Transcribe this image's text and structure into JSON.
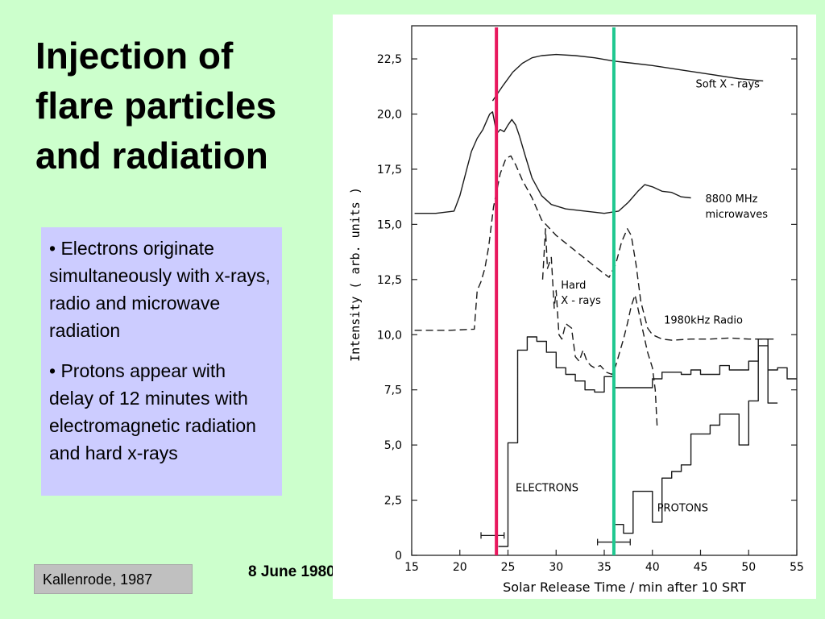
{
  "slide": {
    "title_lines": [
      "Injection of",
      "flare particles",
      "and radiation"
    ],
    "bullets": [
      "• Electrons originate simultaneously with x-rays, radio and microwave radiation",
      "• Protons appear with delay of 12 minutes with electromagnetic radiation and hard x-rays"
    ],
    "citation": "Kallenrode, 1987",
    "date": "8 June 1980"
  },
  "chart_data": {
    "type": "line",
    "title": "",
    "xlabel": "Solar Release Time   / min after 10 SRT",
    "ylabel": "Intensity  ( arb. units )",
    "xlim": [
      15,
      55
    ],
    "ylim": [
      0,
      24
    ],
    "x_ticks": [
      15,
      20,
      25,
      30,
      35,
      40,
      45,
      50,
      55
    ],
    "x_tick_labels": [
      "15",
      "20",
      "25",
      "30",
      "35",
      "40",
      "45",
      "50",
      "55"
    ],
    "y_ticks": [
      0,
      2.5,
      5,
      7.5,
      10,
      12.5,
      15,
      17.5,
      20,
      22.5
    ],
    "y_tick_labels": [
      "0",
      "2,5",
      "5,0",
      "7,5",
      "10,0",
      "12,5",
      "15,0",
      "17,5",
      "20,0",
      "22,5"
    ],
    "grid": false,
    "series": [
      {
        "name": "Soft X-rays",
        "style": "solid",
        "x": [
          23.4,
          24.5,
          25.5,
          26.5,
          27.5,
          28.5,
          30,
          32,
          34,
          36,
          38,
          40,
          43,
          46,
          49,
          51.5
        ],
        "y": [
          20.6,
          21.3,
          21.9,
          22.3,
          22.55,
          22.65,
          22.7,
          22.65,
          22.55,
          22.4,
          22.3,
          22.2,
          22.0,
          21.8,
          21.6,
          21.5
        ]
      },
      {
        "name": "8800 MHz microwaves",
        "style": "solid",
        "x": [
          15.3,
          17.5,
          19.4,
          20,
          20.6,
          21.2,
          21.8,
          22.4,
          22.8,
          23.1,
          23.4,
          23.7,
          23.9,
          24.2,
          24.6,
          25,
          25.4,
          25.8,
          26.2,
          26.8,
          27.5,
          28.5,
          29.5,
          31,
          33,
          35,
          36.5,
          37.5,
          38.5,
          39.2,
          40,
          41,
          42,
          43,
          44
        ],
        "y": [
          15.5,
          15.5,
          15.6,
          16.3,
          17.3,
          18.3,
          18.9,
          19.3,
          19.7,
          20.0,
          20.1,
          19.4,
          19.15,
          19.3,
          19.2,
          19.5,
          19.75,
          19.5,
          19.0,
          18.1,
          17.1,
          16.3,
          15.9,
          15.7,
          15.6,
          15.5,
          15.6,
          16.0,
          16.5,
          16.8,
          16.7,
          16.5,
          16.45,
          16.25,
          16.2
        ]
      },
      {
        "name": "1980kHz Radio",
        "style": "dashed",
        "x": [
          15.3,
          19,
          21.5,
          21.8,
          22.2,
          22.6,
          23,
          23.5,
          24.2,
          24.8,
          25.3,
          25.8,
          26.5,
          27.5,
          28.5,
          30,
          32,
          34,
          35.5,
          36.2,
          36.8,
          37.4,
          37.8,
          38.3,
          38.8,
          39.5,
          40,
          41,
          42,
          44,
          46,
          48,
          50,
          51,
          53
        ],
        "y": [
          10.2,
          10.2,
          10.25,
          12.0,
          12.4,
          13.0,
          14.0,
          15.8,
          17.3,
          18.0,
          18.1,
          17.7,
          17.0,
          16.2,
          15.2,
          14.5,
          13.8,
          13.1,
          12.6,
          13.2,
          14.2,
          14.8,
          14.5,
          13.2,
          11.5,
          10.3,
          10.0,
          9.8,
          9.75,
          9.8,
          9.8,
          9.85,
          9.8,
          9.8,
          9.8
        ]
      },
      {
        "name": "Hard X-rays",
        "style": "dashed",
        "x": [
          28.6,
          28.9,
          29.1,
          29.5,
          29.8,
          30.0,
          30.3,
          30.6,
          31.0,
          31.6,
          32.0,
          32.4,
          32.8,
          33.2,
          33.6,
          34.0,
          34.6,
          35.2,
          35.8,
          36.2,
          36.6,
          37.0,
          37.4,
          37.8,
          38.2,
          38.6,
          39.0,
          39.5,
          40.0,
          40.3,
          40.5
        ],
        "y": [
          12.5,
          14.8,
          13.0,
          13.5,
          11.2,
          12.0,
          10.0,
          9.8,
          10.5,
          10.3,
          9.0,
          8.8,
          9.3,
          8.8,
          8.6,
          8.5,
          8.6,
          8.3,
          8.2,
          8.6,
          9.2,
          9.8,
          10.5,
          11.3,
          11.8,
          11.0,
          10.2,
          9.2,
          8.5,
          7.5,
          5.8
        ]
      },
      {
        "name": "ELECTRONS",
        "style": "step",
        "x": [
          24,
          25,
          26,
          27,
          28,
          29,
          30,
          31,
          32,
          33,
          34,
          35,
          36,
          38,
          40,
          41,
          43,
          44,
          45,
          47,
          48,
          50,
          51,
          52,
          53,
          54
        ],
        "y": [
          0.4,
          5.1,
          9.3,
          9.9,
          9.7,
          9.2,
          8.5,
          8.2,
          7.9,
          7.5,
          7.4,
          8.1,
          7.6,
          7.6,
          8.0,
          8.3,
          8.2,
          8.4,
          8.2,
          8.6,
          8.4,
          8.8,
          9.8,
          8.4,
          8.5,
          8.0
        ]
      },
      {
        "name": "PROTONS",
        "style": "step",
        "x": [
          36,
          37,
          38,
          39,
          40,
          41,
          42,
          43,
          44,
          45,
          46,
          47,
          48,
          49,
          50,
          51,
          52
        ],
        "y": [
          1.4,
          1.0,
          2.9,
          2.9,
          1.5,
          3.5,
          3.8,
          4.1,
          5.5,
          5.5,
          5.9,
          6.4,
          6.4,
          5.0,
          7.0,
          9.5,
          6.9
        ]
      }
    ],
    "error_bars": [
      {
        "x_center": 23.4,
        "x_low": 22.2,
        "x_high": 24.6,
        "y": 0.9
      },
      {
        "x_center": 36.0,
        "x_low": 34.3,
        "x_high": 37.7,
        "y": 0.6
      }
    ],
    "vertical_markers": [
      {
        "x": 23.8,
        "color": "#e8185e"
      },
      {
        "x": 36.0,
        "color": "#20c890"
      }
    ],
    "annotations": [
      {
        "text": "Soft  X - rays",
        "x": 44.5,
        "y": 21.2
      },
      {
        "text": "8800 MHz",
        "x": 45.5,
        "y": 16.0
      },
      {
        "text": "microwaves",
        "x": 45.5,
        "y": 15.3
      },
      {
        "text": "Hard",
        "x": 30.5,
        "y": 12.1
      },
      {
        "text": "X - rays",
        "x": 30.5,
        "y": 11.4
      },
      {
        "text": "1980kHz Radio",
        "x": 41.2,
        "y": 10.5
      },
      {
        "text": "ELECTRONS",
        "x": 25.8,
        "y": 2.9
      },
      {
        "text": "PROTONS",
        "x": 40.5,
        "y": 2.0
      }
    ]
  }
}
